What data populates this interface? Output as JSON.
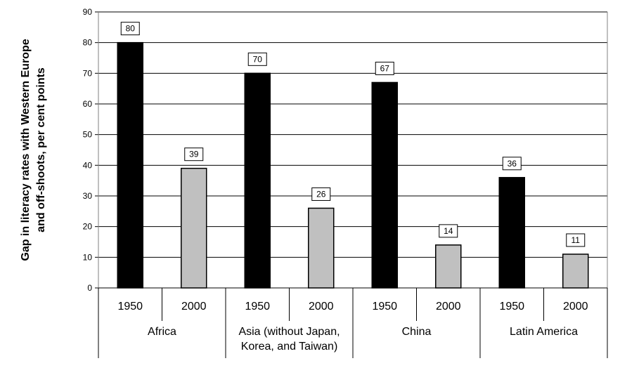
{
  "chart_data": {
    "type": "bar",
    "title": "",
    "ylabel": [
      "Gap in literacy rates with Western Europe",
      "and off-shoots, per cent points"
    ],
    "ylim": [
      0,
      90
    ],
    "yticks": [
      0,
      10,
      20,
      30,
      40,
      50,
      60,
      70,
      80,
      90
    ],
    "grid": true,
    "groups": [
      {
        "label": [
          "Africa"
        ],
        "bars": [
          {
            "year": "1950",
            "value": 80
          },
          {
            "year": "2000",
            "value": 39
          }
        ]
      },
      {
        "label": [
          "Asia (without Japan,",
          "Korea, and Taiwan)"
        ],
        "bars": [
          {
            "year": "1950",
            "value": 70
          },
          {
            "year": "2000",
            "value": 26
          }
        ]
      },
      {
        "label": [
          "China"
        ],
        "bars": [
          {
            "year": "1950",
            "value": 67
          },
          {
            "year": "2000",
            "value": 14
          }
        ]
      },
      {
        "label": [
          "Latin America"
        ],
        "bars": [
          {
            "year": "1950",
            "value": 36
          },
          {
            "year": "2000",
            "value": 11
          }
        ]
      }
    ],
    "colors": {
      "1950": "#000000",
      "2000": "#c0c0c0"
    }
  }
}
